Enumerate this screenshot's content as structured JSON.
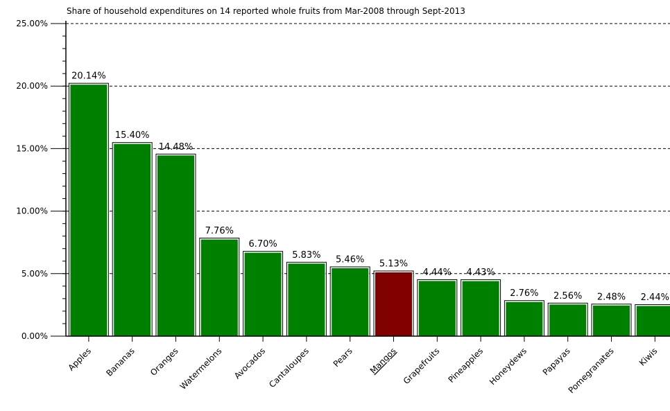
{
  "chart_data": {
    "type": "bar",
    "title": "Share of household expenditures on 14 reported whole fruits from Mar-2008 through Sept-2013",
    "xlabel": "",
    "ylabel": "",
    "ylim": [
      0,
      25
    ],
    "yticks": [
      "0.00%",
      "5.00%",
      "10.00%",
      "15.00%",
      "20.00%",
      "25.00%"
    ],
    "grid": "horizontal-dashed",
    "categories": [
      "Apples",
      "Bananas",
      "Oranges",
      "Watermelons",
      "Avocados",
      "Cantaloupes",
      "Pears",
      "Mangos",
      "Grapefruits",
      "Pineapples",
      "Honeydews",
      "Papayas",
      "Pomegranates",
      "Kiwis"
    ],
    "values": [
      20.14,
      15.4,
      14.48,
      7.76,
      6.7,
      5.83,
      5.46,
      5.13,
      4.44,
      4.43,
      2.76,
      2.56,
      2.48,
      2.44
    ],
    "labels": [
      "20.14%",
      "15.40%",
      "14.48%",
      "7.76%",
      "6.70%",
      "5.83%",
      "5.46%",
      "5.13%",
      "4.44%",
      "4.43%",
      "2.76%",
      "2.56%",
      "2.48%",
      "2.44%"
    ],
    "highlight": "Mangos",
    "colors": {
      "bar": "#008000",
      "highlight": "#800000",
      "axis": "#000000",
      "grid": "#000000"
    }
  }
}
